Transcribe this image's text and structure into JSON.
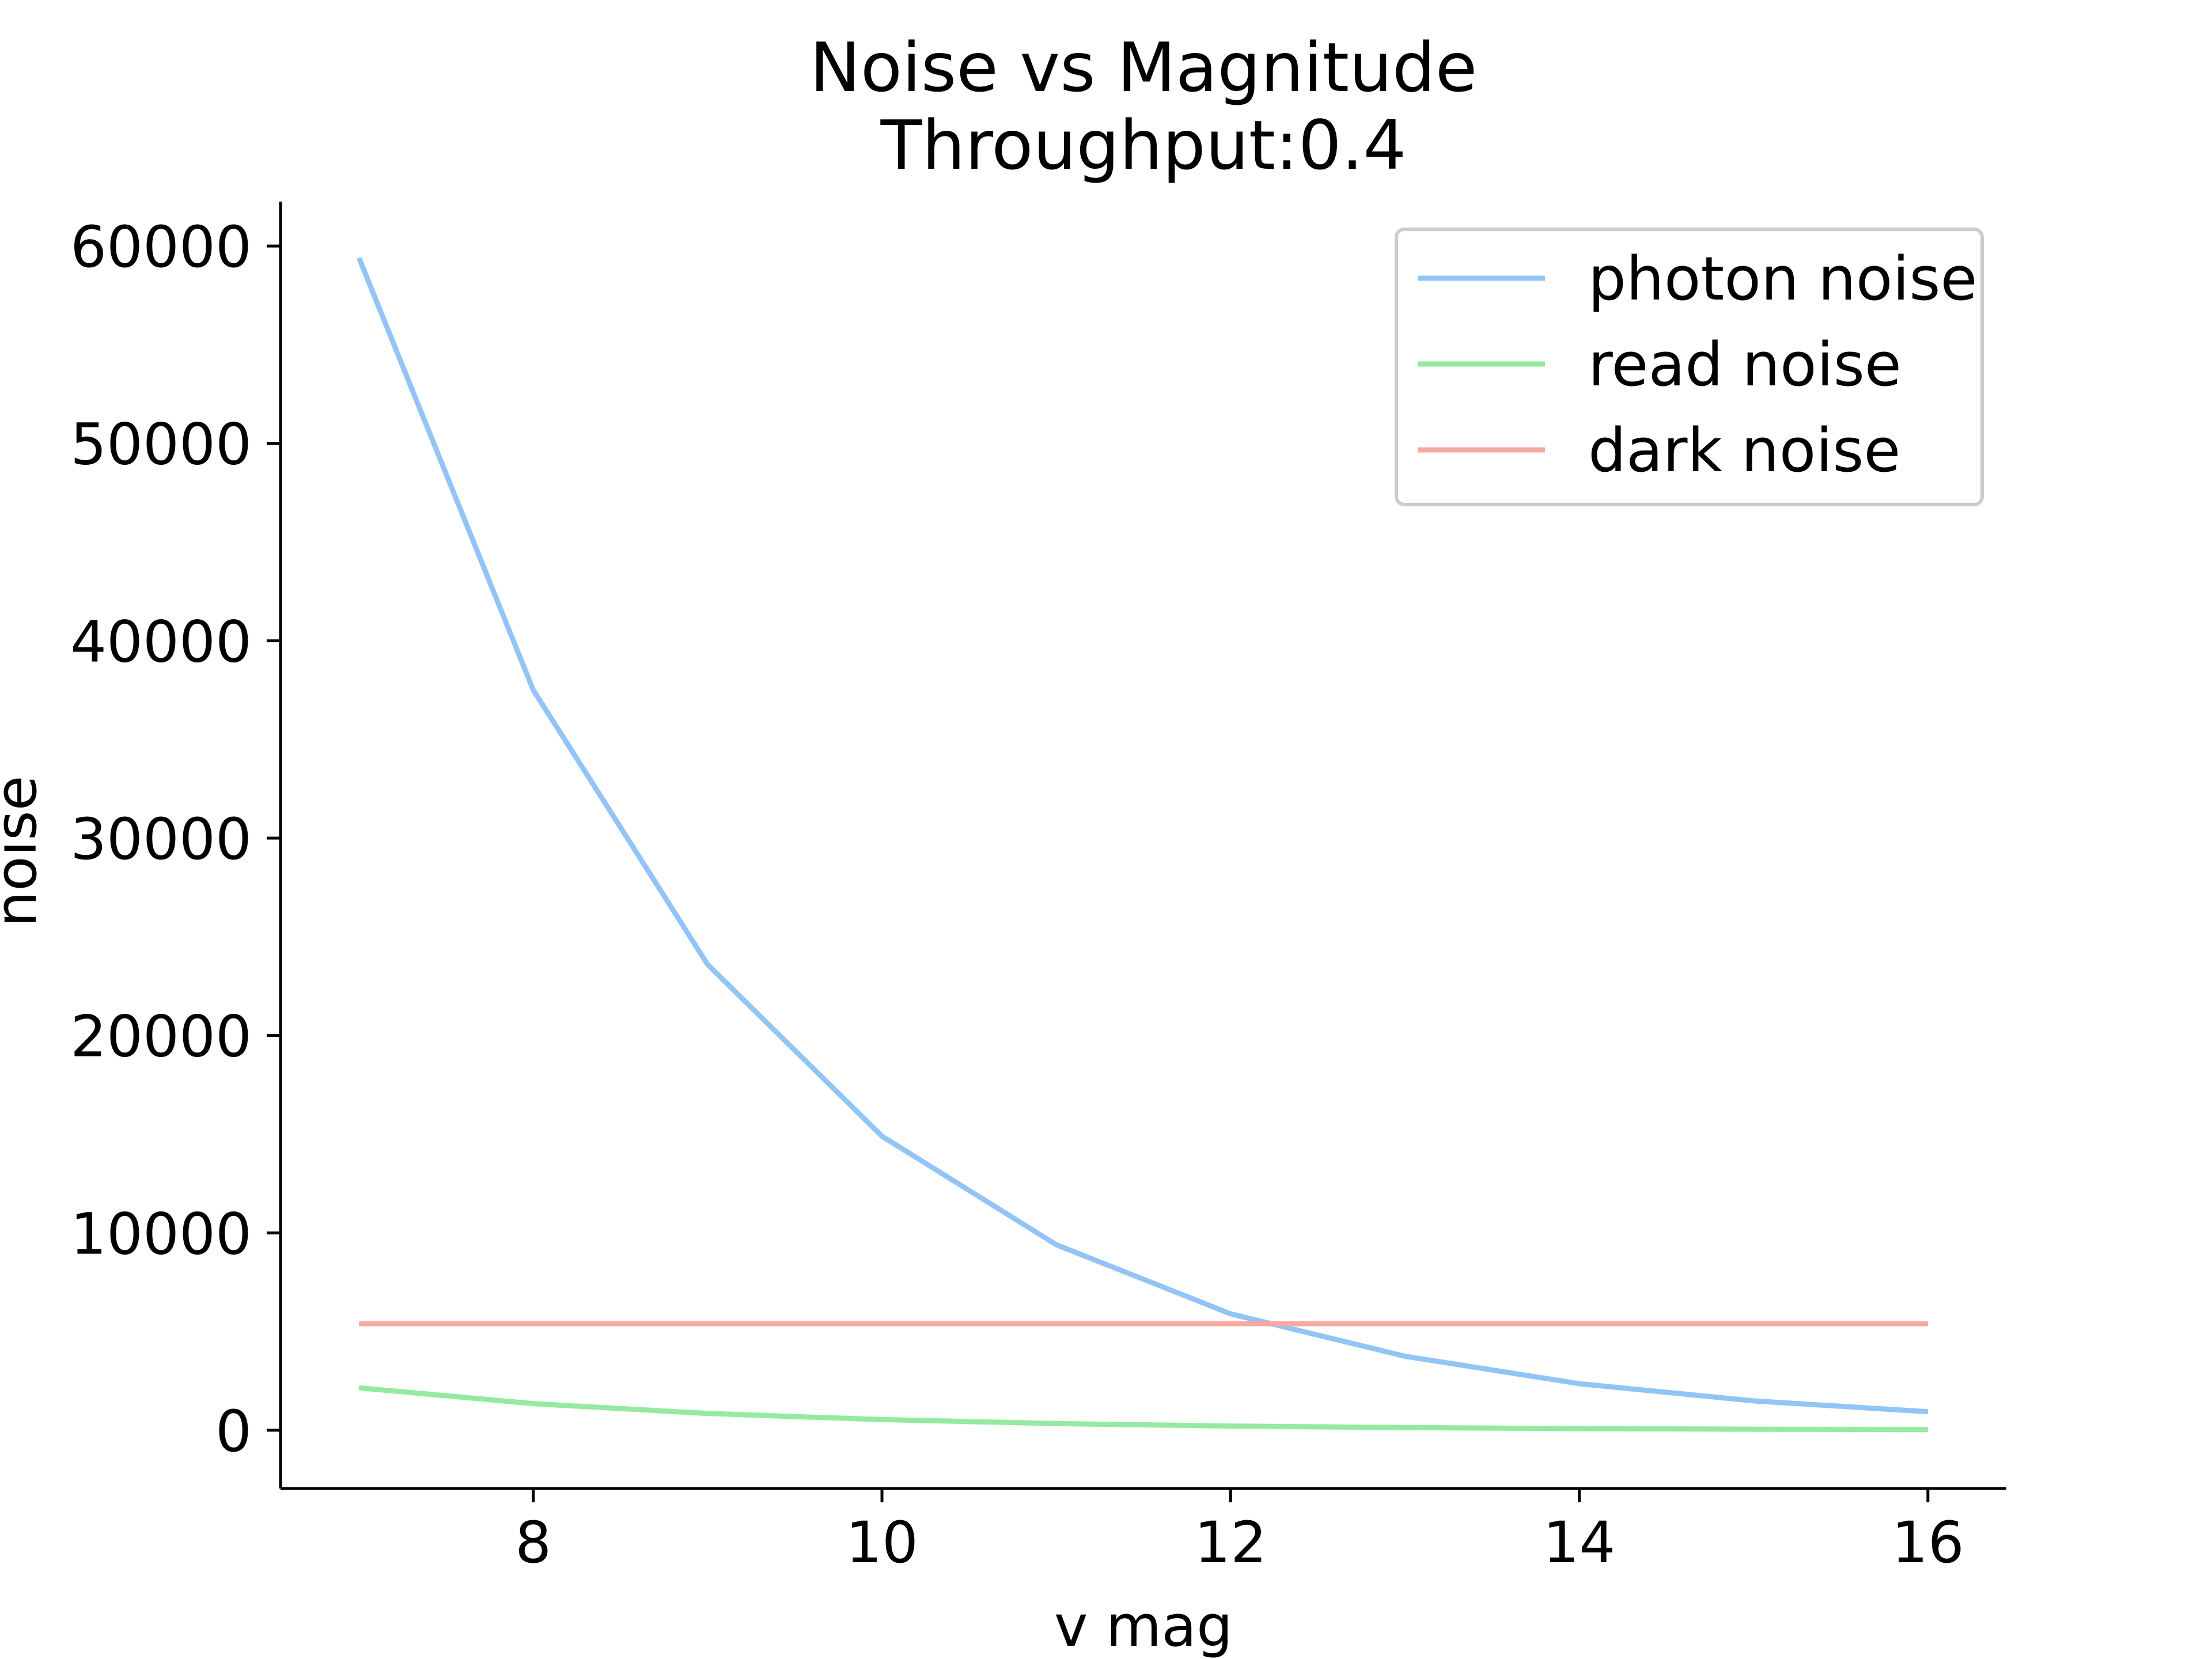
{
  "chart_data": {
    "type": "line",
    "title": "Noise vs Magnitude",
    "subtitle": "Throughput:0.4",
    "xlabel": "v mag",
    "ylabel": "noise",
    "xlim": [
      6.55,
      16.45
    ],
    "ylim": [
      -2950,
      62250
    ],
    "xticks": [
      8,
      10,
      12,
      14,
      16
    ],
    "yticks": [
      0,
      10000,
      20000,
      30000,
      40000,
      50000,
      60000
    ],
    "xtick_labels": [
      "8",
      "10",
      "12",
      "14",
      "16"
    ],
    "ytick_labels": [
      "0",
      "10000",
      "20000",
      "30000",
      "40000",
      "50000",
      "60000"
    ],
    "grid": false,
    "legend_position": "top-right",
    "x": [
      7,
      8,
      9,
      10,
      11,
      12,
      13,
      14,
      15,
      16
    ],
    "series": [
      {
        "name": "photon noise",
        "color": "#92c4f6",
        "values": [
          59400,
          37500,
          23600,
          14900,
          9400,
          5900,
          3750,
          2360,
          1490,
          940
        ]
      },
      {
        "name": "read noise",
        "color": "#95ea9f",
        "values": [
          2150,
          1350,
          850,
          540,
          340,
          215,
          135,
          85,
          54,
          34
        ]
      },
      {
        "name": "dark noise",
        "color": "#f7a8a2",
        "values": [
          5400,
          5400,
          5400,
          5400,
          5400,
          5400,
          5400,
          5400,
          5400,
          5400
        ]
      }
    ]
  }
}
